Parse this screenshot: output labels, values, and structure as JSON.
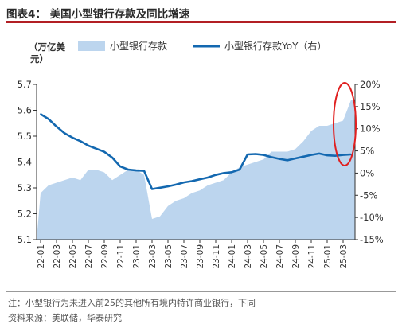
{
  "figure": {
    "title": "图表4：  美国小型银行存款及同比增速",
    "note": "注：小型银行为未进入前25的其他所有境内特许商业银行，下同",
    "source": "资料来源：美联储，华泰研究"
  },
  "chart_data": {
    "type": "area+line",
    "left_axis": {
      "label_line1": "（万亿美",
      "label_line2": "元）",
      "ylim": [
        5.1,
        5.7
      ],
      "ticks": [
        "5.7",
        "5.6",
        "5.5",
        "5.4",
        "5.3",
        "5.2",
        "5.1"
      ],
      "tick_values": [
        5.7,
        5.6,
        5.5,
        5.4,
        5.3,
        5.2,
        5.1
      ]
    },
    "right_axis": {
      "ylim": [
        -15,
        20
      ],
      "ticks": [
        "20%",
        "15%",
        "10%",
        "5%",
        "0%",
        "-5%",
        "-10%",
        "-15%"
      ],
      "tick_values": [
        20,
        15,
        10,
        5,
        0,
        -5,
        -10,
        -15
      ]
    },
    "x_ticks": [
      "22-01",
      "22-03",
      "22-05",
      "22-07",
      "22-09",
      "22-11",
      "23-01",
      "23-03",
      "23-05",
      "23-07",
      "23-09",
      "23-11",
      "24-01",
      "24-03",
      "24-05",
      "24-07",
      "24-09",
      "24-11",
      "25-01",
      "25-03"
    ],
    "legend": {
      "placement": "top",
      "area_label": "小型银行存款",
      "line_label": "小型银行存款YoY（右）"
    },
    "colors": {
      "area": "#bcd5ee",
      "line": "#1368b0",
      "highlight": "#e02020",
      "axis": "#333333"
    },
    "annotation": "red ellipse around latest period",
    "series": [
      {
        "name": "小型银行存款",
        "axis": "left",
        "kind": "area",
        "x": [
          "22-01",
          "22-02",
          "22-03",
          "22-04",
          "22-05",
          "22-06",
          "22-07",
          "22-08",
          "22-09",
          "22-10",
          "22-11",
          "22-12",
          "23-01",
          "23-02",
          "23-03",
          "23-04",
          "23-05",
          "23-06",
          "23-07",
          "23-08",
          "23-09",
          "23-10",
          "23-11",
          "23-12",
          "24-01",
          "24-02",
          "24-03",
          "24-04",
          "24-05",
          "24-06",
          "24-07",
          "24-08",
          "24-09",
          "24-10",
          "24-11",
          "24-12",
          "25-01",
          "25-02",
          "25-03",
          "25-04"
        ],
        "values": [
          5.28,
          5.31,
          5.32,
          5.33,
          5.34,
          5.33,
          5.37,
          5.37,
          5.36,
          5.33,
          5.35,
          5.37,
          5.37,
          5.35,
          5.18,
          5.19,
          5.23,
          5.25,
          5.26,
          5.28,
          5.29,
          5.31,
          5.32,
          5.33,
          5.36,
          5.38,
          5.39,
          5.4,
          5.41,
          5.44,
          5.44,
          5.44,
          5.45,
          5.48,
          5.52,
          5.54,
          5.54,
          5.55,
          5.56,
          5.64
        ]
      },
      {
        "name": "小型银行存款YoY（右）",
        "axis": "right",
        "kind": "line",
        "x": [
          "22-01",
          "22-02",
          "22-03",
          "22-04",
          "22-05",
          "22-06",
          "22-07",
          "22-08",
          "22-09",
          "22-10",
          "22-11",
          "22-12",
          "23-01",
          "23-02",
          "23-03",
          "23-04",
          "23-05",
          "23-06",
          "23-07",
          "23-08",
          "23-09",
          "23-10",
          "23-11",
          "23-12",
          "24-01",
          "24-02",
          "24-03",
          "24-04",
          "24-05",
          "24-06",
          "24-07",
          "24-08",
          "24-09",
          "24-10",
          "24-11",
          "24-12",
          "25-01",
          "25-02",
          "25-03",
          "25-04"
        ],
        "values": [
          13.3,
          12.2,
          10.5,
          9.0,
          8.0,
          7.2,
          6.2,
          5.5,
          4.8,
          3.5,
          1.5,
          0.8,
          0.6,
          0.5,
          -3.6,
          -3.3,
          -3.0,
          -2.6,
          -2.1,
          -1.8,
          -1.4,
          -1.0,
          -0.4,
          0.0,
          0.2,
          0.8,
          4.2,
          4.3,
          4.1,
          3.6,
          3.2,
          2.9,
          3.3,
          3.7,
          4.1,
          4.4,
          4.0,
          3.9,
          4.1,
          4.2
        ]
      }
    ]
  }
}
